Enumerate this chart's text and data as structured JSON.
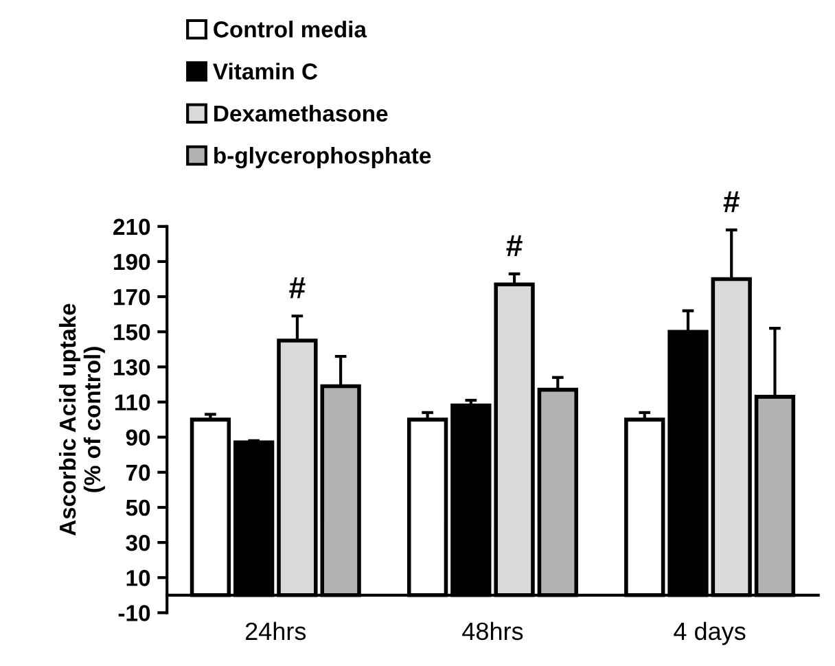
{
  "chart_data": {
    "type": "bar",
    "ylabel": "Ascorbic Acid uptake\n(% of control)",
    "categories": [
      "24hrs",
      "48hrs",
      "4 days"
    ],
    "series": [
      {
        "name": "Control media",
        "color": "#ffffff",
        "values": [
          100,
          100,
          100
        ],
        "errors": [
          [
            100,
            103
          ],
          [
            100,
            104
          ],
          [
            100,
            104
          ]
        ]
      },
      {
        "name": "Vitamin C",
        "color": "#000000",
        "values": [
          87,
          108,
          150
        ],
        "errors": [
          [
            87,
            88
          ],
          [
            108,
            111
          ],
          [
            150,
            162
          ]
        ]
      },
      {
        "name": "Dexamethasone",
        "color": "#d9d9d9",
        "values": [
          145,
          177,
          180
        ],
        "errors": [
          [
            145,
            159
          ],
          [
            177,
            183
          ],
          [
            180,
            208
          ]
        ]
      },
      {
        "name": "b-glycerophosphate",
        "color": "#b2b2b2",
        "values": [
          119,
          117,
          113
        ],
        "errors": [
          [
            119,
            136
          ],
          [
            117,
            124
          ],
          [
            113,
            152
          ]
        ]
      }
    ],
    "annotations": [
      "#",
      "#",
      "#"
    ],
    "ylim": [
      -10,
      210
    ],
    "yticks": [
      -10,
      10,
      30,
      50,
      70,
      90,
      110,
      130,
      150,
      170,
      190,
      210
    ],
    "grid": false,
    "legend": "top left"
  }
}
